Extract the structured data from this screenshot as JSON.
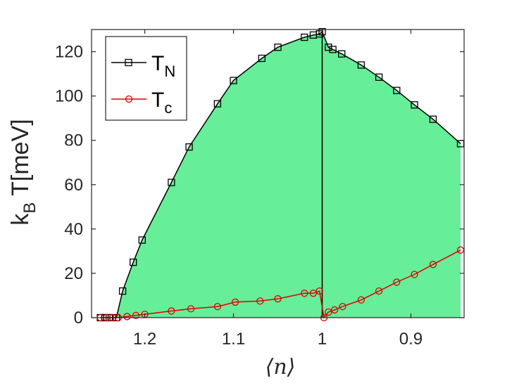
{
  "chart_data": {
    "type": "line",
    "xlabel": "⟨n⟩",
    "ylabel_main": "k",
    "ylabel_sub": "B",
    "ylabel_rest": " T[meV]",
    "xlim": [
      1.26,
      0.84
    ],
    "ylim": [
      0,
      130
    ],
    "x_reversed": true,
    "xticks": [
      1.2,
      1.1,
      1,
      0.9
    ],
    "xtick_labels": [
      "1.2",
      "1.1",
      "1",
      "0.9"
    ],
    "yticks": [
      0,
      20,
      40,
      60,
      80,
      100,
      120
    ],
    "ytick_labels": [
      "0",
      "20",
      "40",
      "60",
      "80",
      "100",
      "120"
    ],
    "fill_color": "#66ee99",
    "legend_position": "top-left",
    "series": [
      {
        "name_main": "T",
        "name_sub": "N",
        "color": "#000000",
        "marker": "square",
        "x": [
          1.25,
          1.245,
          1.24,
          1.232,
          1.225,
          1.213,
          1.203,
          1.17,
          1.15,
          1.118,
          1.1,
          1.068,
          1.05,
          1.02,
          1.01,
          1.003,
          1.0,
          0.993,
          0.988,
          0.978,
          0.956,
          0.936,
          0.916,
          0.896,
          0.875,
          0.844
        ],
        "y": [
          0,
          0,
          0,
          0,
          12,
          25,
          35,
          61,
          77,
          96.5,
          107,
          117,
          122,
          126.5,
          127.5,
          128,
          129,
          122,
          121,
          119,
          114,
          108.5,
          102.5,
          96,
          89.5,
          78.5
        ]
      },
      {
        "name_main": "T",
        "name_sub": "c",
        "color": "#dd0000",
        "marker": "circle",
        "x": [
          1.25,
          1.243,
          1.236,
          1.23,
          1.22,
          1.21,
          1.2,
          1.17,
          1.148,
          1.118,
          1.098,
          1.07,
          1.05,
          1.02,
          1.01,
          1.003,
          0.998,
          0.993,
          0.986,
          0.977,
          0.956,
          0.936,
          0.916,
          0.896,
          0.875,
          0.844
        ],
        "y": [
          0,
          0,
          0,
          0,
          0.5,
          1,
          1.5,
          3,
          4,
          5,
          7,
          7.5,
          8.5,
          11,
          11,
          12,
          0,
          2.5,
          3.5,
          5,
          8,
          12,
          16,
          19.5,
          24,
          30.5
        ]
      }
    ]
  }
}
